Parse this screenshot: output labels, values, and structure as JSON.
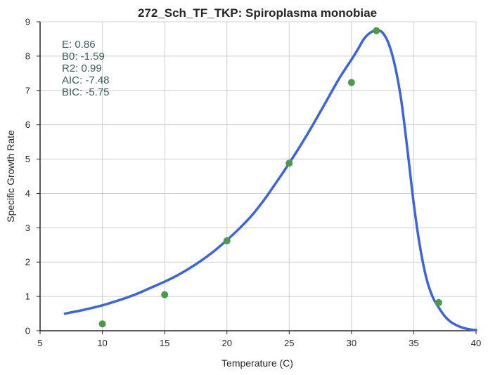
{
  "chart_data": {
    "type": "scatter",
    "title": "272_Sch_TF_TKP: Spiroplasma monobiae",
    "xlabel": "Temperature (C)",
    "ylabel": "Specific Growth Rate",
    "xlim": [
      5,
      40
    ],
    "ylim": [
      0,
      9
    ],
    "xticks": [
      5,
      10,
      15,
      20,
      25,
      30,
      35,
      40
    ],
    "yticks": [
      0,
      1,
      2,
      3,
      4,
      5,
      6,
      7,
      8,
      9
    ],
    "grid": true,
    "colors": {
      "points": "#4a9a4a",
      "fit": "#3d64d8",
      "grid": "#cfcfcf",
      "axis": "#262626"
    },
    "points": {
      "x": [
        10,
        15,
        20,
        25,
        30,
        32,
        37
      ],
      "y": [
        0.2,
        1.05,
        2.62,
        4.88,
        7.23,
        8.74,
        0.82
      ]
    },
    "fit": {
      "x": [
        7,
        8,
        9,
        10,
        11,
        12,
        13,
        14,
        15,
        16,
        17,
        18,
        19,
        20,
        21,
        22,
        23,
        24,
        25,
        26,
        27,
        28,
        29,
        30,
        30.5,
        31,
        31.5,
        32,
        32.5,
        33,
        33.5,
        34,
        34.5,
        35,
        35.5,
        36,
        36.5,
        37,
        37.5,
        38,
        38.5,
        39,
        39.5,
        40
      ],
      "y": [
        0.5,
        0.57,
        0.65,
        0.74,
        0.85,
        0.97,
        1.11,
        1.27,
        1.43,
        1.61,
        1.82,
        2.06,
        2.33,
        2.64,
        2.98,
        3.36,
        3.82,
        4.34,
        4.88,
        5.45,
        6.06,
        6.7,
        7.34,
        7.9,
        8.19,
        8.5,
        8.68,
        8.75,
        8.68,
        8.35,
        7.7,
        6.7,
        5.25,
        3.7,
        2.45,
        1.55,
        1.0,
        0.68,
        0.42,
        0.25,
        0.15,
        0.08,
        0.04,
        0.02
      ]
    },
    "annotations": [
      {
        "label": "E:",
        "value": "0.86"
      },
      {
        "label": "B0:",
        "value": "-1.59"
      },
      {
        "label": "R2:",
        "value": "0.99"
      },
      {
        "label": "AIC:",
        "value": "-7.48"
      },
      {
        "label": "BIC:",
        "value": "-5.75"
      }
    ]
  }
}
